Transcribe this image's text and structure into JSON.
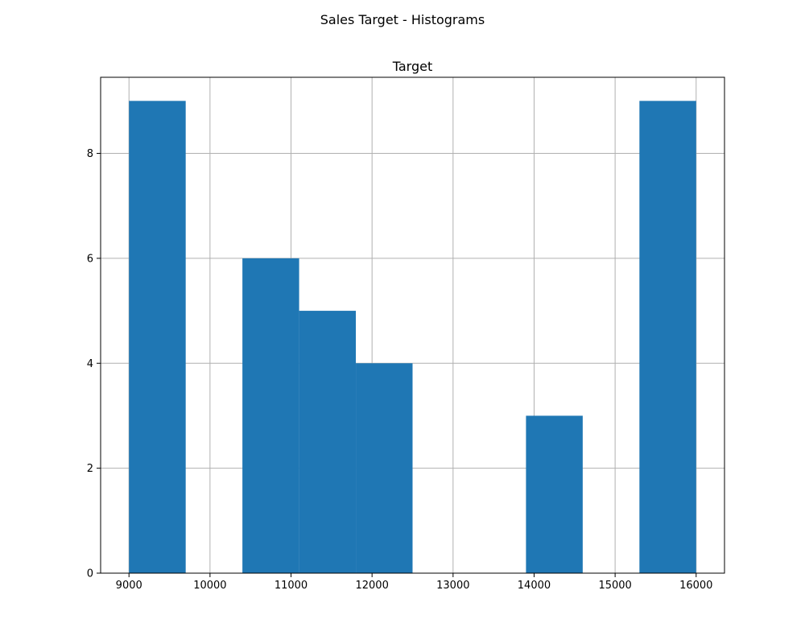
{
  "figure": {
    "suptitle": "Sales Target - Histograms"
  },
  "chart_data": {
    "type": "bar",
    "subtype": "histogram",
    "title": "Target",
    "xlabel": "",
    "ylabel": "",
    "xlim": [
      8650,
      16350
    ],
    "ylim": [
      0,
      9.45
    ],
    "x_ticks": [
      9000,
      10000,
      11000,
      12000,
      13000,
      14000,
      15000,
      16000
    ],
    "y_ticks": [
      0,
      2,
      4,
      6,
      8
    ],
    "grid": true,
    "bins": [
      {
        "start": 9000,
        "end": 9700,
        "count": 9
      },
      {
        "start": 9700,
        "end": 10400,
        "count": 0
      },
      {
        "start": 10400,
        "end": 11100,
        "count": 6
      },
      {
        "start": 11100,
        "end": 11800,
        "count": 5
      },
      {
        "start": 11800,
        "end": 12500,
        "count": 4
      },
      {
        "start": 12500,
        "end": 13200,
        "count": 0
      },
      {
        "start": 13200,
        "end": 13900,
        "count": 0
      },
      {
        "start": 13900,
        "end": 14600,
        "count": 3
      },
      {
        "start": 14600,
        "end": 15300,
        "count": 0
      },
      {
        "start": 15300,
        "end": 16000,
        "count": 9
      }
    ],
    "colors": {
      "bar": "#1f77b4",
      "grid": "#b0b0b0",
      "axes": "#000000"
    }
  }
}
